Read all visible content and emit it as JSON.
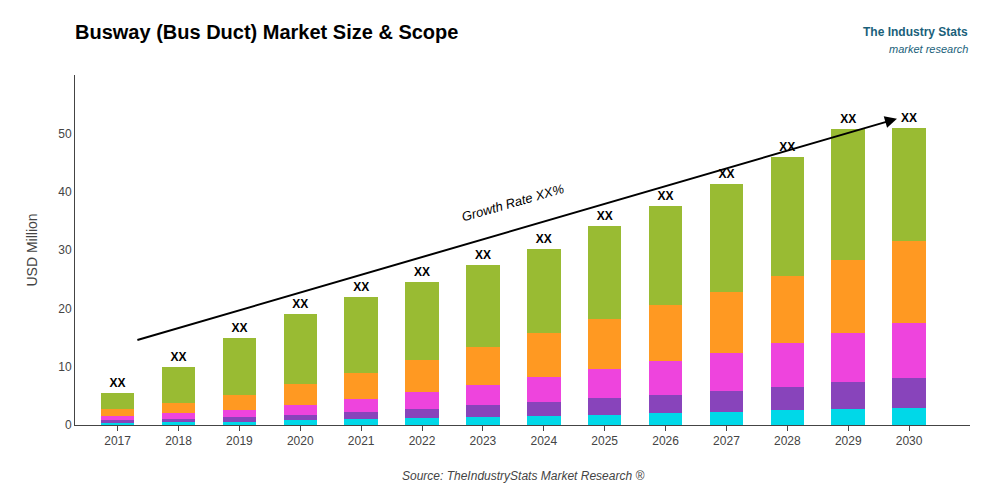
{
  "chart_data": {
    "type": "bar",
    "stacked": true,
    "title": "Busway (Bus Duct) Market Size & Scope",
    "ylabel": "USD Million",
    "source": "Source: TheIndustryStats Market Research ®",
    "branding": [
      "The Industry Stats",
      "market research"
    ],
    "x": [
      2017,
      2018,
      2019,
      2020,
      2021,
      2022,
      2023,
      2024,
      2025,
      2026,
      2027,
      2028,
      2029,
      2030
    ],
    "series": [
      {
        "color": "#00d8e8",
        "values": [
          0.4,
          0.5,
          0.6,
          0.8,
          1.0,
          1.2,
          1.4,
          1.6,
          1.8,
          2.0,
          2.2,
          2.5,
          2.8,
          3.0
        ]
      },
      {
        "color": "#8844bb",
        "values": [
          0.4,
          0.6,
          0.8,
          1.0,
          1.3,
          1.6,
          2.0,
          2.4,
          2.8,
          3.2,
          3.6,
          4.0,
          4.5,
          5.0
        ]
      },
      {
        "color": "#ee44dd",
        "values": [
          0.7,
          0.9,
          1.2,
          1.7,
          2.2,
          2.8,
          3.5,
          4.2,
          5.0,
          5.8,
          6.5,
          7.5,
          8.5,
          9.5
        ]
      },
      {
        "color": "#ff9922",
        "values": [
          1.3,
          1.8,
          2.6,
          3.5,
          4.5,
          5.5,
          6.5,
          7.5,
          8.5,
          9.5,
          10.5,
          11.5,
          12.5,
          14.0
        ]
      },
      {
        "color": "#99bb33",
        "values": [
          2.7,
          6.2,
          9.8,
          12.0,
          13.0,
          13.5,
          14.0,
          14.5,
          16.0,
          17.0,
          18.5,
          20.5,
          22.5,
          19.5
        ]
      }
    ],
    "bar_labels": [
      "XX",
      "XX",
      "XX",
      "XX",
      "XX",
      "XX",
      "XX",
      "XX",
      "XX",
      "XX",
      "XX",
      "XX",
      "XX",
      "XX"
    ],
    "annotations": [
      {
        "text": "Growth Rate XX%",
        "x": 2023.5,
        "y": 34.0
      }
    ],
    "arrow": {
      "x": [
        2017.3,
        2029.8
      ],
      "y": [
        14.5,
        52.5
      ]
    },
    "xlim": [
      2016.3,
      2031.0
    ],
    "xticks": [
      2017,
      2018,
      2019,
      2020,
      2021,
      2022,
      2023,
      2024,
      2025,
      2026,
      2027,
      2028,
      2029,
      2030
    ],
    "ylim": [
      0,
      60
    ],
    "yticks": [
      0,
      10,
      20,
      30,
      40,
      50
    ],
    "grid": false
  }
}
